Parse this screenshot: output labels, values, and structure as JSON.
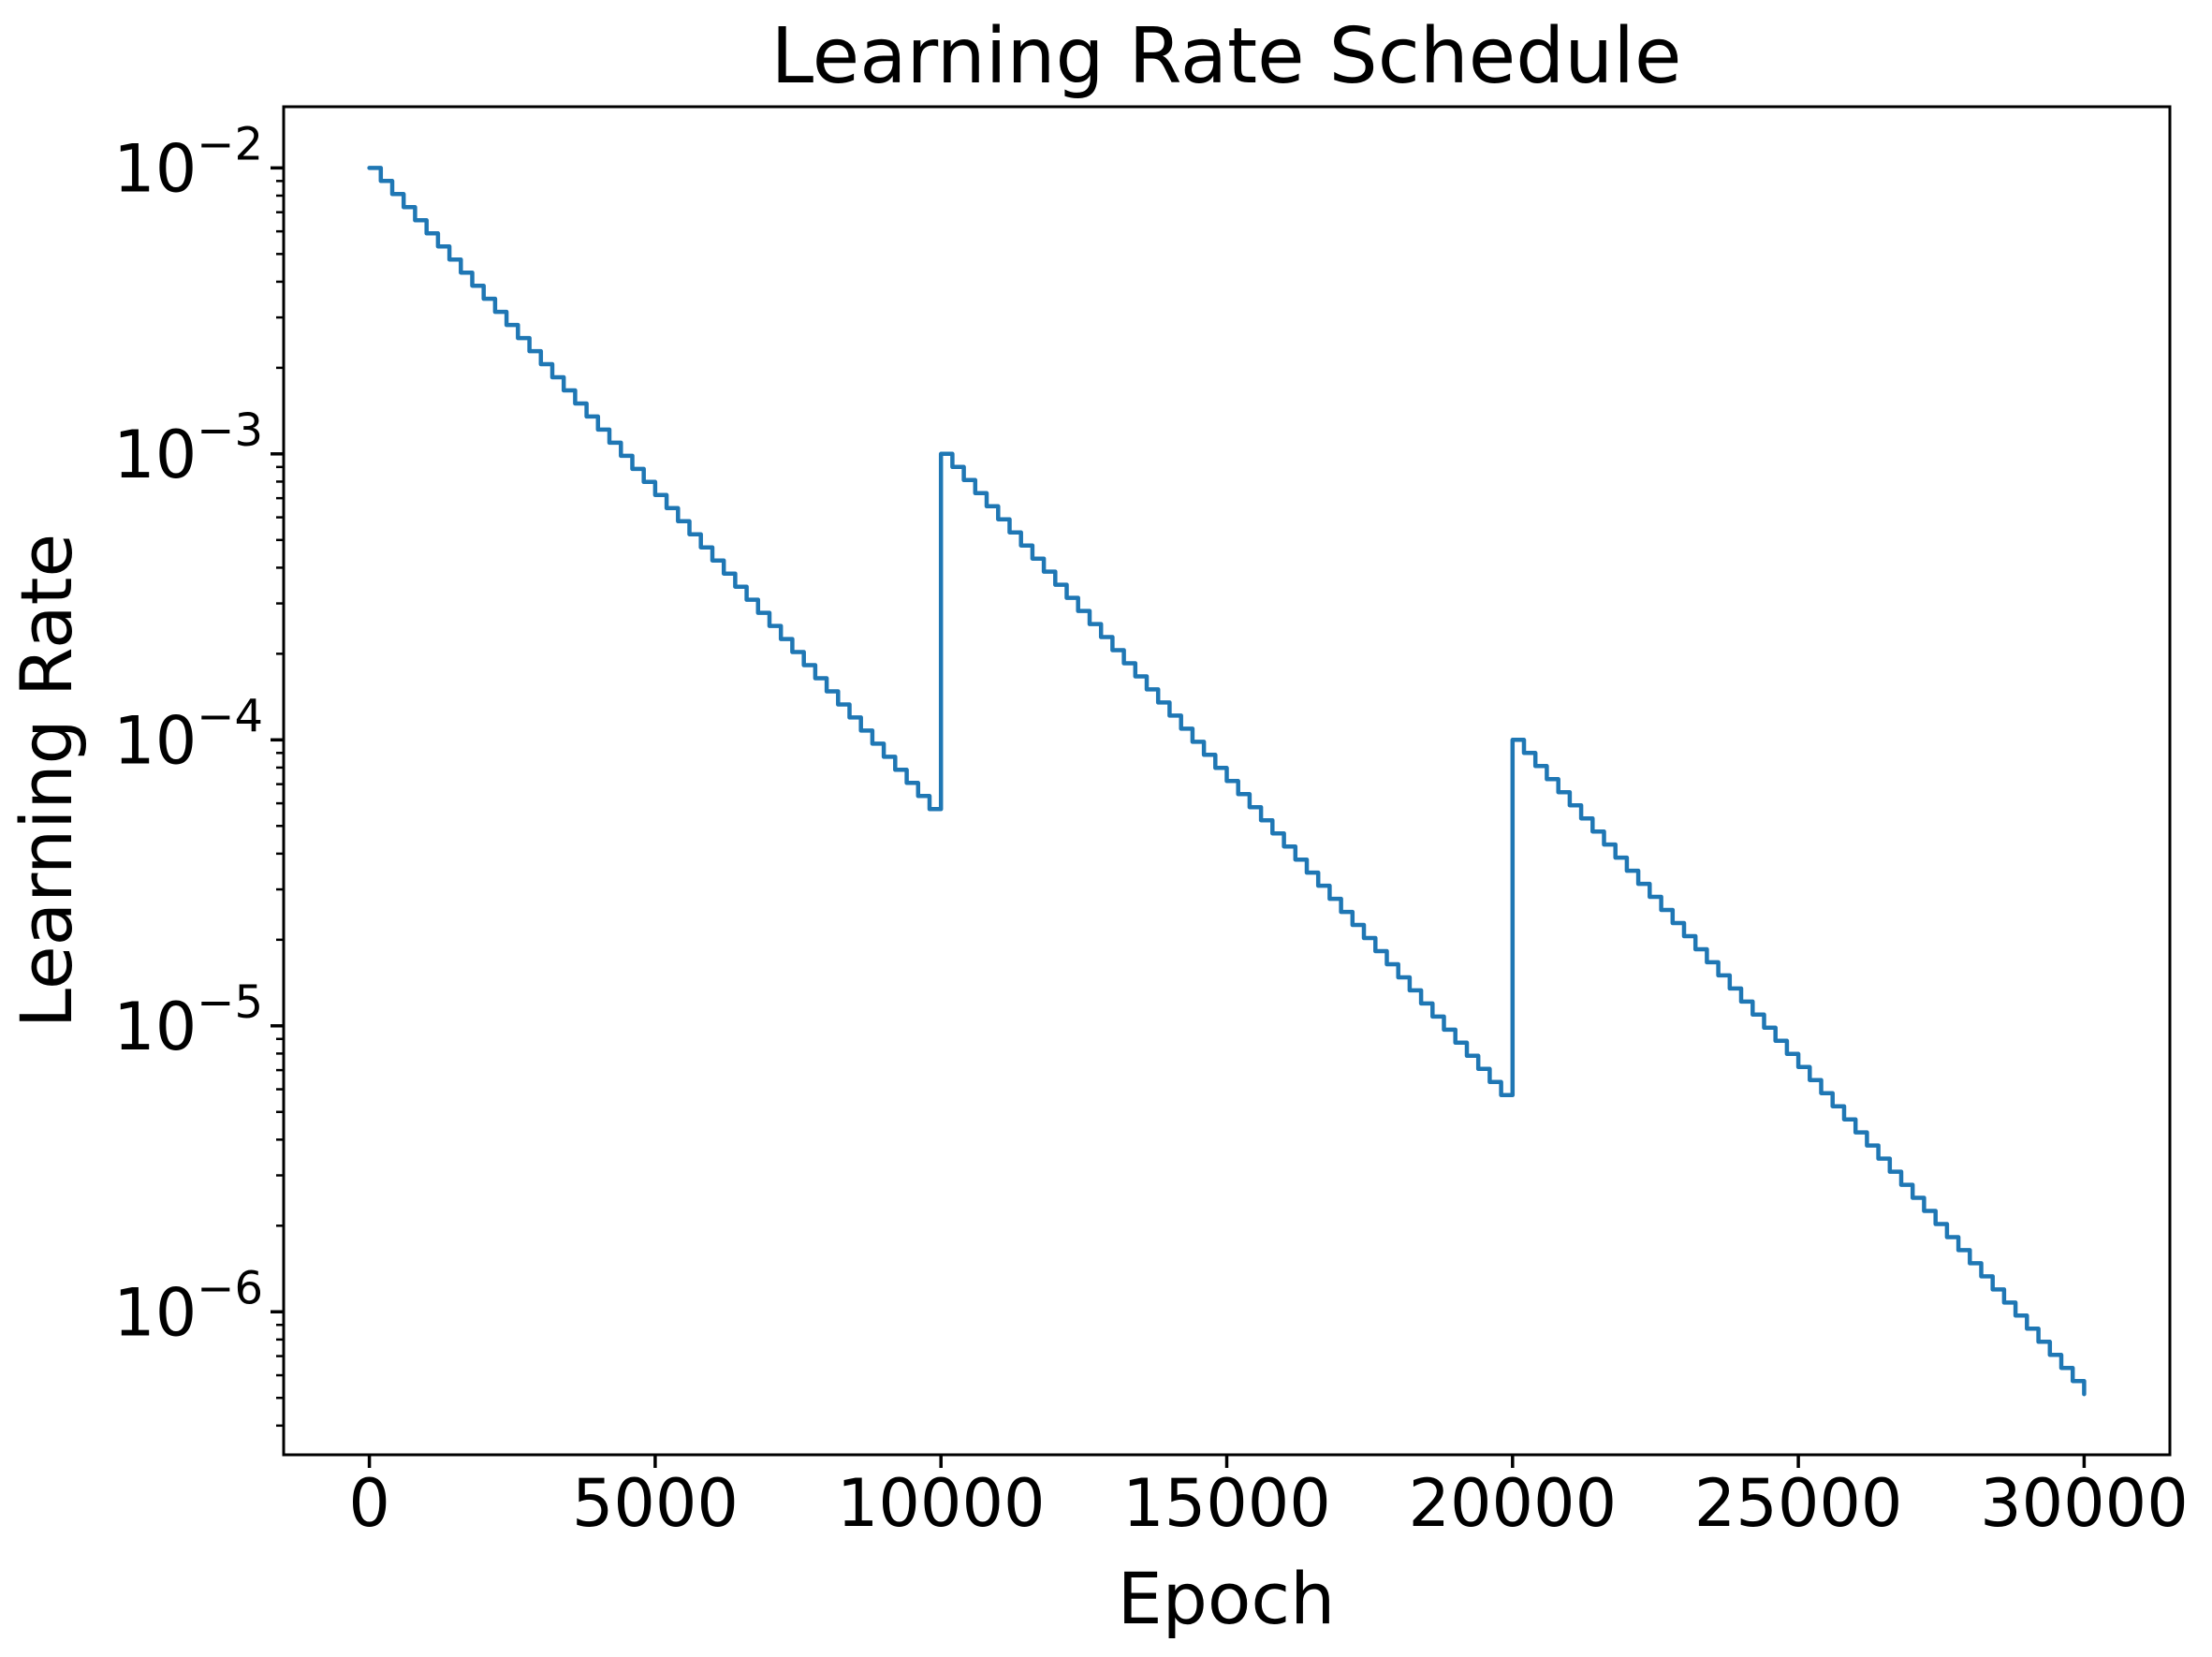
{
  "chart_data": {
    "type": "line",
    "subtype": "step",
    "title": "Learning Rate Schedule",
    "xlabel": "Epoch",
    "ylabel": "Learning Rate",
    "x_scale": "linear",
    "y_scale": "log",
    "grid": false,
    "legend": "none",
    "xlim": [
      -1500,
      31500
    ],
    "ylim_log10": [
      -6.5,
      -1.786
    ],
    "line_color": "#1f77b4",
    "x_ticks": [
      {
        "value": 0,
        "label": "0"
      },
      {
        "value": 5000,
        "label": "5000"
      },
      {
        "value": 10000,
        "label": "10000"
      },
      {
        "value": 15000,
        "label": "15000"
      },
      {
        "value": 20000,
        "label": "20000"
      },
      {
        "value": 25000,
        "label": "25000"
      },
      {
        "value": 30000,
        "label": "30000"
      }
    ],
    "y_ticks": [
      {
        "value": 0.01,
        "label_base": "10",
        "label_exp": "−2"
      },
      {
        "value": 0.001,
        "label_base": "10",
        "label_exp": "−3"
      },
      {
        "value": 0.0001,
        "label_base": "10",
        "label_exp": "−4"
      },
      {
        "value": 1e-05,
        "label_base": "10",
        "label_exp": "−5"
      },
      {
        "value": 1e-06,
        "label_base": "10",
        "label_exp": "−6"
      }
    ],
    "y_minor_tick_decades": [
      -7,
      -6,
      -5,
      -4,
      -3,
      -2
    ],
    "series": [
      {
        "name": "learning_rate",
        "color": "#1f77b4",
        "schedule": {
          "step_every_epochs": 200,
          "decay_factor_per_step": 0.9,
          "cycles": [
            {
              "start_epoch": 0,
              "end_epoch": 10000,
              "initial_lr": 0.01,
              "final_lr": 5.73e-05
            },
            {
              "start_epoch": 10000,
              "end_epoch": 20000,
              "initial_lr": 0.001,
              "final_lr": 5.73e-06
            },
            {
              "start_epoch": 20000,
              "end_epoch": 30000,
              "initial_lr": 0.0001,
              "final_lr": 5.73e-07
            }
          ],
          "final_point": {
            "epoch": 30000,
            "lr": 5.154e-07
          }
        }
      }
    ]
  }
}
